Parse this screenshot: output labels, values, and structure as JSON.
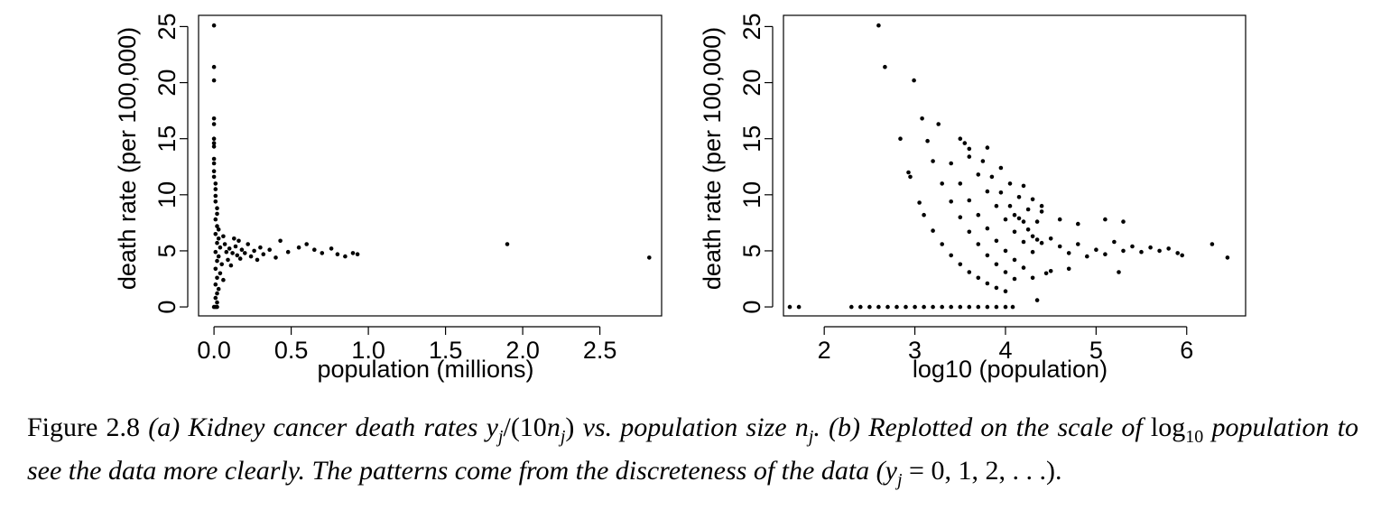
{
  "chart_data": [
    {
      "panel": "a",
      "type": "scatter",
      "title": "",
      "xlabel": "population (millions)",
      "ylabel": "death rate (per 100,000)",
      "xlim": [
        -0.1,
        2.9
      ],
      "ylim": [
        -0.8,
        26
      ],
      "xticks": [
        0,
        0.5,
        1,
        1.5,
        2,
        2.5
      ],
      "xtick_labels": [
        "0.0",
        "0.5",
        "1.0",
        "1.5",
        "2.0",
        "2.5"
      ],
      "yticks": [
        0,
        5,
        10,
        15,
        20,
        25
      ],
      "ytick_labels": [
        "0",
        "5",
        "10",
        "15",
        "20",
        "25"
      ],
      "grid": false,
      "legend": "none",
      "points": [
        [
          0.0,
          25.1
        ],
        [
          0.0,
          21.4
        ],
        [
          0.0,
          20.2
        ],
        [
          0.0,
          16.8
        ],
        [
          0.0,
          16.3
        ],
        [
          0.0,
          15.0
        ],
        [
          0.0,
          14.6
        ],
        [
          0.0,
          14.3
        ],
        [
          0.0,
          13.2
        ],
        [
          0.0,
          12.8
        ],
        [
          0.0,
          12.1
        ],
        [
          0.0,
          11.6
        ],
        [
          0.01,
          11.0
        ],
        [
          0.01,
          10.5
        ],
        [
          0.01,
          9.9
        ],
        [
          0.01,
          9.4
        ],
        [
          0.02,
          8.8
        ],
        [
          0.02,
          8.3
        ],
        [
          0.01,
          7.8
        ],
        [
          0.02,
          7.2
        ],
        [
          0.03,
          6.9
        ],
        [
          0.01,
          6.5
        ],
        [
          0.03,
          6.1
        ],
        [
          0.02,
          5.7
        ],
        [
          0.04,
          5.3
        ],
        [
          0.01,
          4.9
        ],
        [
          0.03,
          4.5
        ],
        [
          0.02,
          4.1
        ],
        [
          0.05,
          3.8
        ],
        [
          0.01,
          3.4
        ],
        [
          0.04,
          3.0
        ],
        [
          0.02,
          2.6
        ],
        [
          0.06,
          2.4
        ],
        [
          0.01,
          2.0
        ],
        [
          0.03,
          1.6
        ],
        [
          0.02,
          1.2
        ],
        [
          0.01,
          0.8
        ],
        [
          0.02,
          0.4
        ],
        [
          0.0,
          0.0
        ],
        [
          0.01,
          0.0
        ],
        [
          0.02,
          0.0
        ],
        [
          0.06,
          6.3
        ],
        [
          0.07,
          5.6
        ],
        [
          0.08,
          4.9
        ],
        [
          0.09,
          4.2
        ],
        [
          0.1,
          5.2
        ],
        [
          0.11,
          3.7
        ],
        [
          0.12,
          4.8
        ],
        [
          0.13,
          6.1
        ],
        [
          0.14,
          5.4
        ],
        [
          0.15,
          4.6
        ],
        [
          0.16,
          5.9
        ],
        [
          0.17,
          4.3
        ],
        [
          0.18,
          5.1
        ],
        [
          0.2,
          4.8
        ],
        [
          0.22,
          5.6
        ],
        [
          0.24,
          4.5
        ],
        [
          0.26,
          5.0
        ],
        [
          0.28,
          4.2
        ],
        [
          0.3,
          5.3
        ],
        [
          0.32,
          4.7
        ],
        [
          0.36,
          5.1
        ],
        [
          0.4,
          4.4
        ],
        [
          0.43,
          5.9
        ],
        [
          0.48,
          4.9
        ],
        [
          0.55,
          5.3
        ],
        [
          0.6,
          5.6
        ],
        [
          0.65,
          5.1
        ],
        [
          0.7,
          4.8
        ],
        [
          0.76,
          5.2
        ],
        [
          0.8,
          4.7
        ],
        [
          0.85,
          4.5
        ],
        [
          0.9,
          4.8
        ],
        [
          0.93,
          4.7
        ],
        [
          1.9,
          5.6
        ],
        [
          2.82,
          4.4
        ]
      ]
    },
    {
      "panel": "b",
      "type": "scatter",
      "title": "",
      "xlabel": "log10 (population)",
      "ylabel": "death rate (per 100,000)",
      "xlim": [
        1.55,
        6.65
      ],
      "ylim": [
        -0.8,
        26
      ],
      "xticks": [
        2,
        3,
        4,
        5,
        6
      ],
      "xtick_labels": [
        "2",
        "3",
        "4",
        "5",
        "6"
      ],
      "yticks": [
        0,
        5,
        10,
        15,
        20,
        25
      ],
      "ytick_labels": [
        "0",
        "5",
        "10",
        "15",
        "20",
        "25"
      ],
      "grid": false,
      "legend": "none",
      "points": [
        [
          1.62,
          0.0
        ],
        [
          1.72,
          0.0
        ],
        [
          2.3,
          0.0
        ],
        [
          2.4,
          0.0
        ],
        [
          2.5,
          0.0
        ],
        [
          2.6,
          0.0
        ],
        [
          2.7,
          0.0
        ],
        [
          2.8,
          0.0
        ],
        [
          2.9,
          0.0
        ],
        [
          3.0,
          0.0
        ],
        [
          3.1,
          0.0
        ],
        [
          3.2,
          0.0
        ],
        [
          3.3,
          0.0
        ],
        [
          3.4,
          0.0
        ],
        [
          3.5,
          0.0
        ],
        [
          3.6,
          0.0
        ],
        [
          3.7,
          0.0
        ],
        [
          3.8,
          0.0
        ],
        [
          3.9,
          0.0
        ],
        [
          4.0,
          0.0
        ],
        [
          4.08,
          0.0
        ],
        [
          2.6,
          25.1
        ],
        [
          2.67,
          21.4
        ],
        [
          2.99,
          20.2
        ],
        [
          3.08,
          16.8
        ],
        [
          3.26,
          16.3
        ],
        [
          2.84,
          15.0
        ],
        [
          3.14,
          14.8
        ],
        [
          3.5,
          15.0
        ],
        [
          3.55,
          14.6
        ],
        [
          3.6,
          14.1
        ],
        [
          3.8,
          14.2
        ],
        [
          2.93,
          12.0
        ],
        [
          2.95,
          11.6
        ],
        [
          3.05,
          9.3
        ],
        [
          3.1,
          8.2
        ],
        [
          3.2,
          6.8
        ],
        [
          3.3,
          5.6
        ],
        [
          3.4,
          4.6
        ],
        [
          3.5,
          3.8
        ],
        [
          3.6,
          3.1
        ],
        [
          3.7,
          2.6
        ],
        [
          3.8,
          2.1
        ],
        [
          3.9,
          1.7
        ],
        [
          4.0,
          1.4
        ],
        [
          3.2,
          13.0
        ],
        [
          3.3,
          11.0
        ],
        [
          3.4,
          9.4
        ],
        [
          3.5,
          8.0
        ],
        [
          3.6,
          6.7
        ],
        [
          3.7,
          5.6
        ],
        [
          3.8,
          4.6
        ],
        [
          3.9,
          3.8
        ],
        [
          4.0,
          3.1
        ],
        [
          4.1,
          2.5
        ],
        [
          3.4,
          12.8
        ],
        [
          3.5,
          11.0
        ],
        [
          3.6,
          9.5
        ],
        [
          3.7,
          8.2
        ],
        [
          3.8,
          7.0
        ],
        [
          3.9,
          5.9
        ],
        [
          4.0,
          5.0
        ],
        [
          4.1,
          4.2
        ],
        [
          4.2,
          3.5
        ],
        [
          3.6,
          13.4
        ],
        [
          3.7,
          11.8
        ],
        [
          3.8,
          10.3
        ],
        [
          3.9,
          9.0
        ],
        [
          4.0,
          7.8
        ],
        [
          4.1,
          6.7
        ],
        [
          4.2,
          5.8
        ],
        [
          4.3,
          4.9
        ],
        [
          3.75,
          13.0
        ],
        [
          3.85,
          11.6
        ],
        [
          3.95,
          10.2
        ],
        [
          4.05,
          9.0
        ],
        [
          4.15,
          7.9
        ],
        [
          4.25,
          6.9
        ],
        [
          4.35,
          6.0
        ],
        [
          3.95,
          12.4
        ],
        [
          4.05,
          11.0
        ],
        [
          4.15,
          9.8
        ],
        [
          4.25,
          8.7
        ],
        [
          4.35,
          7.6
        ],
        [
          4.2,
          10.8
        ],
        [
          4.3,
          9.6
        ],
        [
          4.4,
          8.5
        ],
        [
          4.1,
          8.2
        ],
        [
          4.2,
          7.6
        ],
        [
          4.3,
          6.3
        ],
        [
          4.4,
          5.7
        ],
        [
          4.5,
          6.1
        ],
        [
          4.6,
          5.4
        ],
        [
          4.7,
          4.8
        ],
        [
          4.8,
          5.6
        ],
        [
          4.9,
          4.5
        ],
        [
          5.0,
          5.1
        ],
        [
          5.1,
          4.7
        ],
        [
          5.2,
          5.8
        ],
        [
          5.3,
          5.0
        ],
        [
          5.4,
          5.4
        ],
        [
          5.5,
          4.9
        ],
        [
          5.6,
          5.3
        ],
        [
          5.7,
          5.0
        ],
        [
          5.8,
          5.2
        ],
        [
          5.9,
          4.8
        ],
        [
          5.95,
          4.6
        ],
        [
          4.4,
          9.0
        ],
        [
          4.6,
          7.8
        ],
        [
          4.8,
          7.4
        ],
        [
          5.1,
          7.8
        ],
        [
          5.3,
          7.6
        ],
        [
          4.5,
          3.2
        ],
        [
          4.3,
          2.6
        ],
        [
          4.35,
          0.6
        ],
        [
          4.45,
          3.0
        ],
        [
          4.7,
          3.4
        ],
        [
          5.25,
          3.1
        ],
        [
          6.28,
          5.6
        ],
        [
          6.45,
          4.4
        ]
      ]
    }
  ],
  "caption": {
    "figure_label": "Figure 2.8",
    "part_a_label": "(a)",
    "part_a_text": "Kidney cancer death rates",
    "y_sym": "y",
    "j_sub": "j",
    "div_open": "/(10",
    "n_sym": "n",
    "div_close": ")",
    "vs_text": "vs. population size",
    "period": ".",
    "part_b_label": "(b)",
    "part_b_text": "Replotted on the scale of",
    "log_text": "log",
    "log_base": "10",
    "part_b_rest": "population to see the data more clearly. The patterns come from the discreteness of the data (",
    "equals_seq": " = 0, 1, 2, . . .).",
    "end": ""
  }
}
